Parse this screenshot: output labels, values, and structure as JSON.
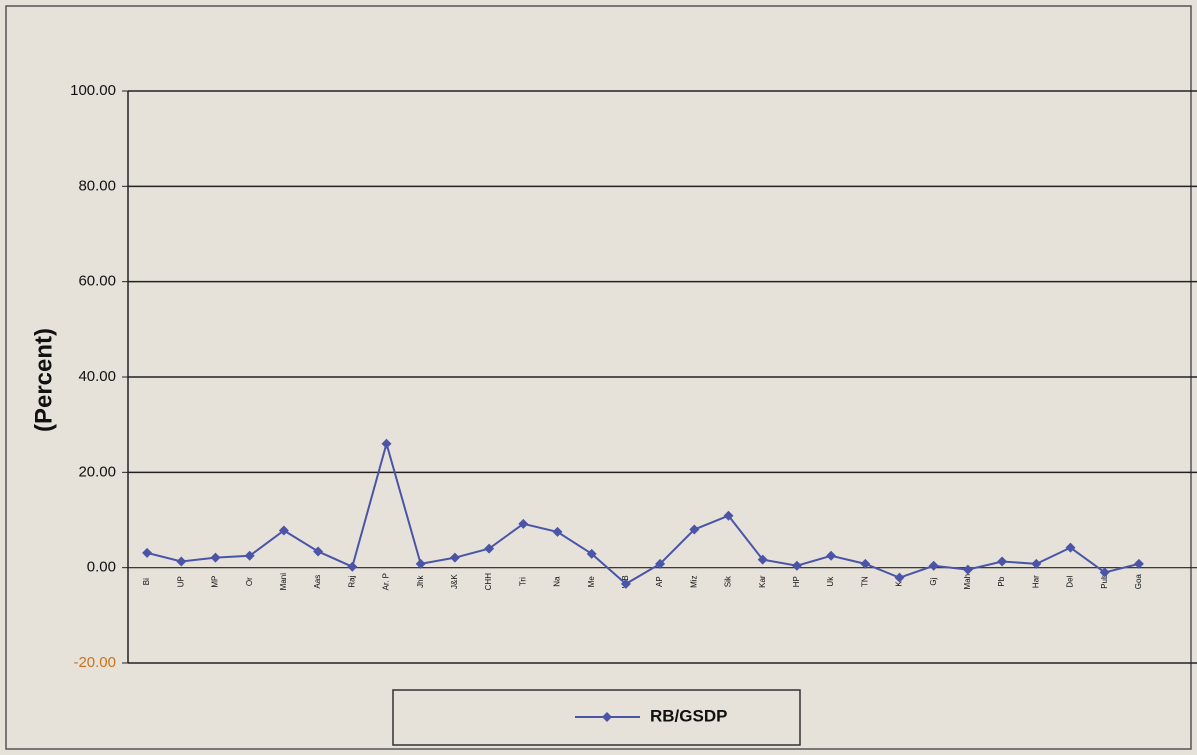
{
  "chart_data": {
    "type": "line",
    "y_label": "(Percent)",
    "categories": [
      "Bi",
      "UP",
      "MP",
      "Or",
      "Mani",
      "Aas",
      "Raj",
      "Ar. P",
      "Jhk",
      "J&K",
      "CHH",
      "Tri",
      "Na",
      "Me",
      "WB",
      "AP",
      "Miz",
      "Sik",
      "Kar",
      "HP",
      "Uk",
      "TN",
      "Ka",
      "Gj",
      "Mah",
      "Pb",
      "Har",
      "Del",
      "Pub",
      "Goa"
    ],
    "series": [
      {
        "name": "RB/GSDP",
        "color": "#4a55a8",
        "values": [
          3.1,
          1.3,
          2.1,
          2.5,
          7.8,
          3.4,
          0.2,
          26,
          0.8,
          2.1,
          4.0,
          9.2,
          7.5,
          2.9,
          -3.4,
          0.8,
          8.0,
          10.9,
          1.7,
          0.4,
          2.5,
          0.8,
          -2.1,
          0.4,
          -0.4,
          1.3,
          0.8,
          4.2,
          -1.0,
          0.8
        ]
      }
    ],
    "ylim": [
      -20,
      100
    ],
    "yticks": [
      {
        "value": -20,
        "label": "-20.00"
      },
      {
        "value": 0,
        "label": "0.00"
      },
      {
        "value": 20,
        "label": "20.00"
      },
      {
        "value": 40,
        "label": "40.00"
      },
      {
        "value": 60,
        "label": "60.00"
      },
      {
        "value": 80,
        "label": "80.00"
      },
      {
        "value": 100,
        "label": "100.00"
      }
    ],
    "grid": true,
    "legend": "bottom"
  }
}
